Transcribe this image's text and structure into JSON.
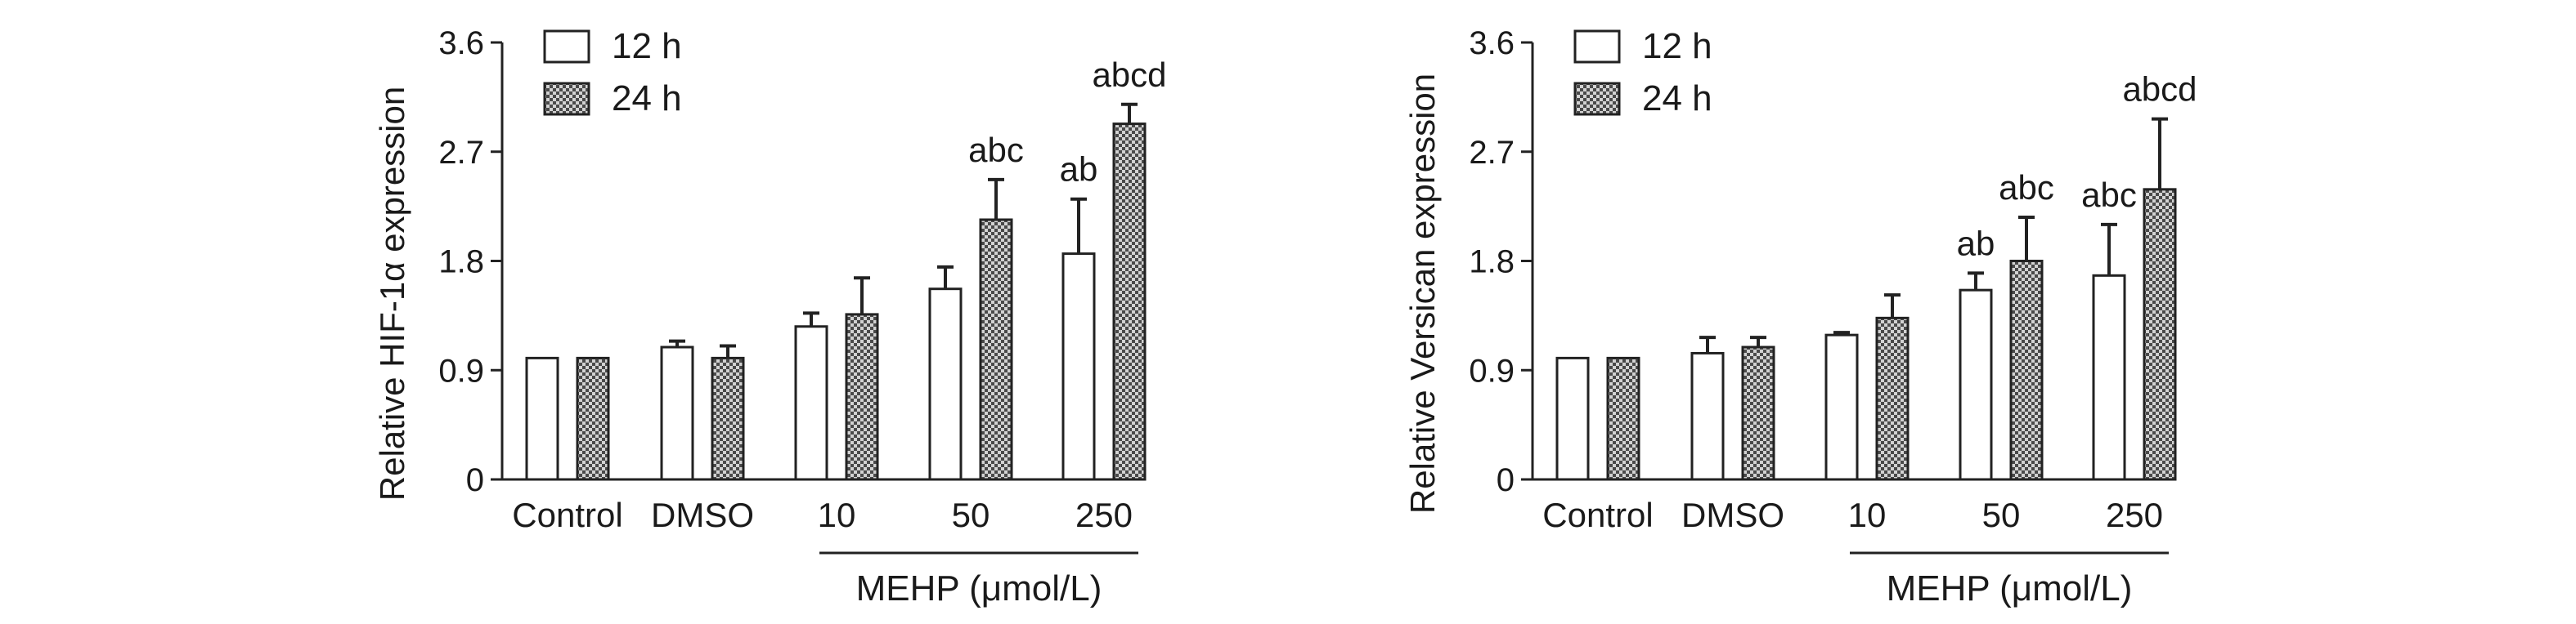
{
  "chart_data": [
    {
      "type": "bar",
      "ylabel": "Relative HIF-1α expression",
      "ylim": [
        0,
        3.6
      ],
      "yticks": [
        "0",
        "0.9",
        "1.8",
        "2.7",
        "3.6"
      ],
      "categories": [
        "Control",
        "DMSO",
        "10",
        "50",
        "250"
      ],
      "group_label": "MEHP (μmol/L)",
      "legend_position": "top-left",
      "series": [
        {
          "name": "12 h",
          "values": [
            1.0,
            1.09,
            1.26,
            1.57,
            1.86
          ],
          "errors": [
            0.0,
            0.05,
            0.11,
            0.18,
            0.45
          ],
          "pattern": "open"
        },
        {
          "name": "24 h",
          "values": [
            1.0,
            1.0,
            1.36,
            2.14,
            2.93
          ],
          "errors": [
            0.0,
            0.1,
            0.3,
            0.33,
            0.16
          ],
          "pattern": "checkered"
        }
      ],
      "annotations": [
        {
          "category": "50",
          "series": "24 h",
          "text": "abc"
        },
        {
          "category": "250",
          "series": "12 h",
          "text": "ab"
        },
        {
          "category": "250",
          "series": "24 h",
          "text": "abcd"
        }
      ]
    },
    {
      "type": "bar",
      "ylabel": "Relative Versican expression",
      "ylim": [
        0,
        3.6
      ],
      "yticks": [
        "0",
        "0.9",
        "1.8",
        "2.7",
        "3.6"
      ],
      "categories": [
        "Control",
        "DMSO",
        "10",
        "50",
        "250"
      ],
      "group_label": "MEHP (μmol/L)",
      "legend_position": "top-left",
      "series": [
        {
          "name": "12 h",
          "values": [
            1.0,
            1.04,
            1.19,
            1.56,
            1.68
          ],
          "errors": [
            0.0,
            0.13,
            0.02,
            0.14,
            0.42
          ],
          "pattern": "open"
        },
        {
          "name": "24 h",
          "values": [
            1.0,
            1.09,
            1.33,
            1.8,
            2.39
          ],
          "errors": [
            0.0,
            0.08,
            0.19,
            0.36,
            0.58
          ],
          "pattern": "checkered"
        }
      ],
      "annotations": [
        {
          "category": "50",
          "series": "12 h",
          "text": "ab"
        },
        {
          "category": "50",
          "series": "24 h",
          "text": "abc"
        },
        {
          "category": "250",
          "series": "12 h",
          "text": "abc"
        },
        {
          "category": "250",
          "series": "24 h",
          "text": "abcd"
        }
      ]
    }
  ]
}
